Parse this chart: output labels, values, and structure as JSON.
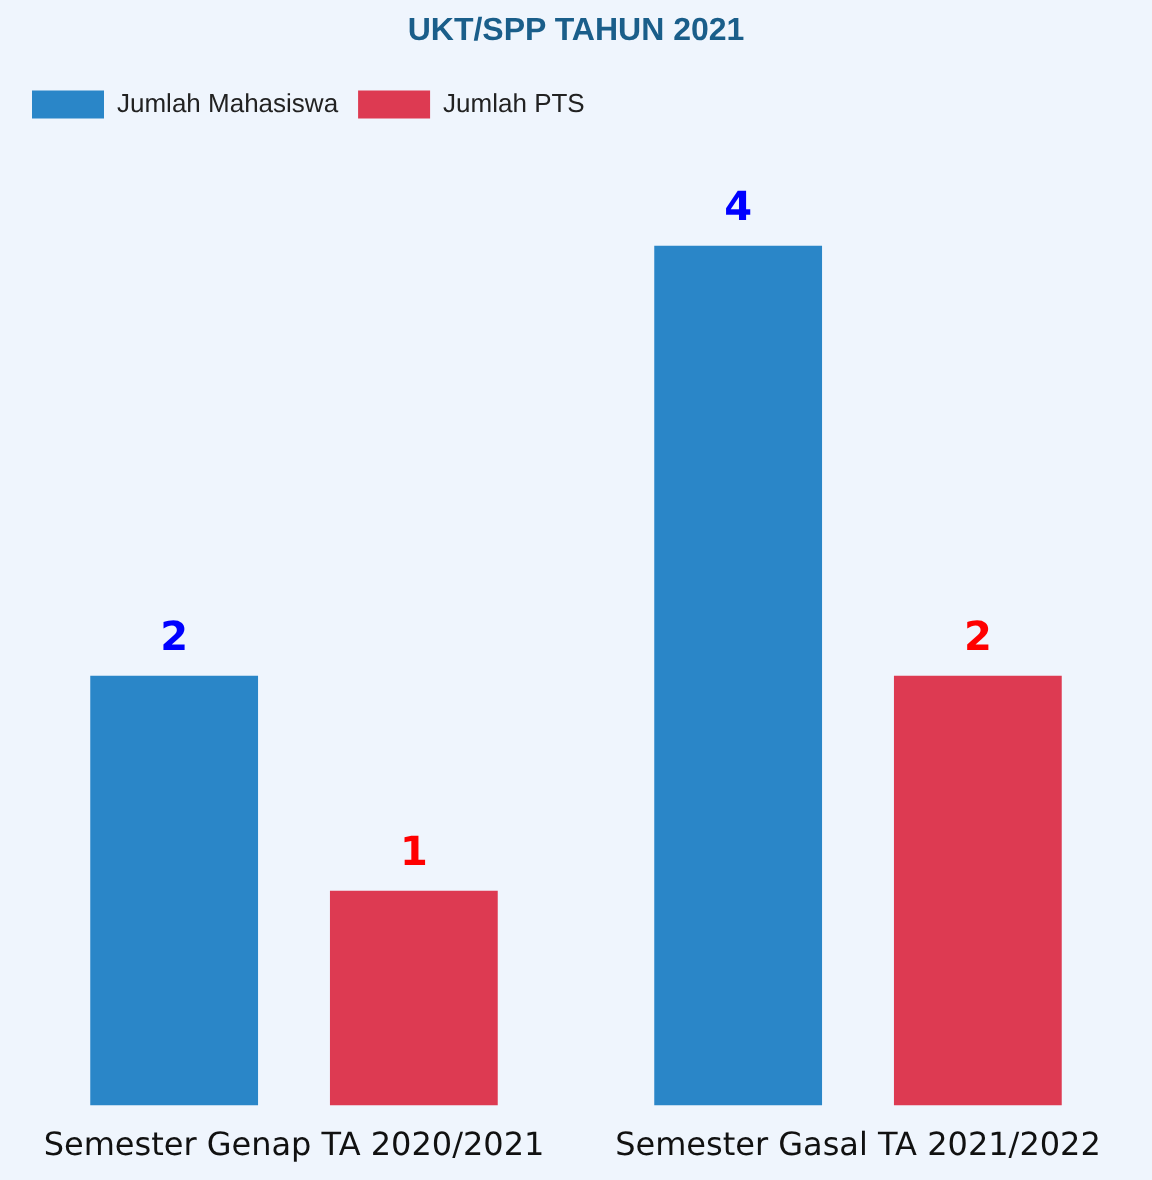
{
  "chart_data": {
    "type": "bar",
    "title": "UKT/SPP TAHUN 2021",
    "categories": [
      "Semester Genap TA 2020/2021",
      "Semester Gasal TA 2021/2022"
    ],
    "series": [
      {
        "name": "Jumlah Mahasiswa",
        "color": "#2a86c8",
        "values": [
          2,
          4
        ]
      },
      {
        "name": "Jumlah PTS",
        "color": "#dd3a52",
        "values": [
          1,
          2
        ]
      }
    ],
    "data_labels": true,
    "legend": "top left",
    "grid": false
  }
}
